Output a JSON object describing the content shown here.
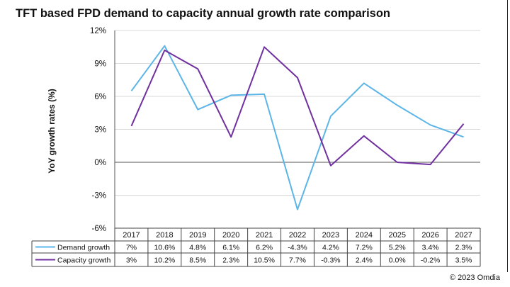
{
  "title": "TFT based FPD demand to capacity annual growth rate comparison",
  "copyright": "© 2023 Omdia",
  "chart_data": {
    "type": "line",
    "title": "TFT based FPD demand to capacity annual growth rate comparison",
    "xlabel": "",
    "ylabel": "YoY growth rates (%)",
    "ylim": [
      -6,
      12
    ],
    "yticks": [
      12,
      9,
      6,
      3,
      0,
      -3,
      -6
    ],
    "ytick_labels": [
      "12%",
      "9%",
      "6%",
      "3%",
      "0%",
      "-3%",
      "-6%"
    ],
    "grid": true,
    "categories": [
      "2017",
      "2018",
      "2019",
      "2020",
      "2021",
      "2022",
      "2023",
      "2024",
      "2025",
      "2026",
      "2027"
    ],
    "series": [
      {
        "name": "Demand growth",
        "color": "#5bb5e8",
        "values": [
          6.5,
          10.6,
          4.8,
          6.1,
          6.2,
          -4.3,
          4.2,
          7.2,
          5.2,
          3.4,
          2.3
        ],
        "labels": [
          "7%",
          "10.6%",
          "4.8%",
          "6.1%",
          "6.2%",
          "-4.3%",
          "4.2%",
          "7.2%",
          "5.2%",
          "3.4%",
          "2.3%"
        ]
      },
      {
        "name": "Capacity growth",
        "color": "#7030a0",
        "values": [
          3.3,
          10.2,
          8.5,
          2.3,
          10.5,
          7.7,
          -0.3,
          2.4,
          0.0,
          -0.2,
          3.5
        ],
        "labels": [
          "3%",
          "10.2%",
          "8.5%",
          "2.3%",
          "10.5%",
          "7.7%",
          "-0.3%",
          "2.4%",
          "0.0%",
          "-0.2%",
          "3.5%"
        ]
      }
    ]
  }
}
